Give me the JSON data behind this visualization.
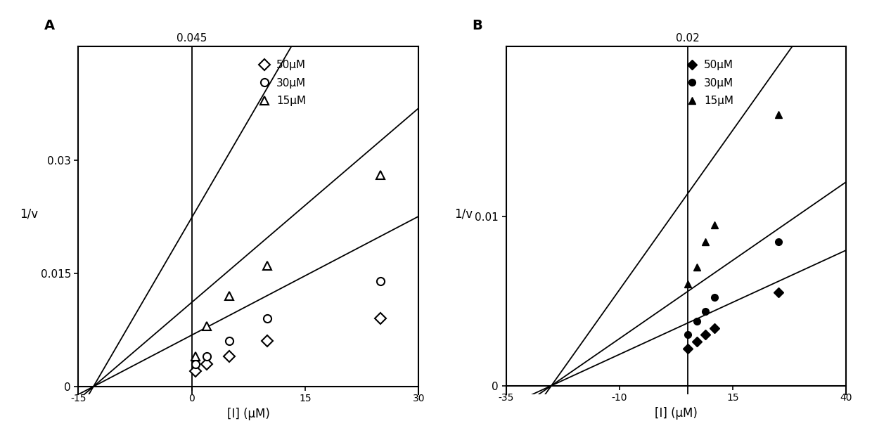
{
  "panel_A": {
    "title": "A",
    "xlabel": "[I] (μM)",
    "ylabel": "1/v",
    "xlim": [
      -15,
      30
    ],
    "ylim": [
      -0.001,
      0.045
    ],
    "yticks": [
      0,
      0.015,
      0.03
    ],
    "ytop_label": "0.045",
    "xticks": [
      -15,
      0,
      15,
      30
    ],
    "vline_x": 0,
    "series": [
      {
        "label": "50μM",
        "marker": "D",
        "filled": false,
        "data_x": [
          0.5,
          2,
          5,
          10,
          25
        ],
        "data_y": [
          0.002,
          0.003,
          0.004,
          0.006,
          0.009
        ],
        "line_x0": -13,
        "line_slope": 0.000524
      },
      {
        "label": "30μM",
        "marker": "o",
        "filled": false,
        "data_x": [
          0.5,
          2,
          5,
          10,
          25
        ],
        "data_y": [
          0.003,
          0.004,
          0.006,
          0.009,
          0.014
        ],
        "line_x0": -13,
        "line_slope": 0.000857
      },
      {
        "label": "15μM",
        "marker": "^",
        "filled": false,
        "data_x": [
          0.5,
          2,
          5,
          10,
          25
        ],
        "data_y": [
          0.004,
          0.008,
          0.012,
          0.016,
          0.028
        ],
        "line_x0": -13,
        "line_slope": 0.00172
      }
    ]
  },
  "panel_B": {
    "title": "B",
    "xlabel": "[I] (μM)",
    "ylabel": "1/v",
    "xlim": [
      -35,
      40
    ],
    "ylim": [
      -0.0005,
      0.02
    ],
    "yticks": [
      0,
      0.01
    ],
    "ytop_label": "0.02",
    "xticks": [
      -35,
      -10,
      15,
      40
    ],
    "vline_x": 5,
    "series": [
      {
        "label": "50μM",
        "marker": "D",
        "filled": true,
        "data_x": [
          5,
          7,
          9,
          11,
          25
        ],
        "data_y": [
          0.0022,
          0.0026,
          0.003,
          0.0034,
          0.0055
        ],
        "line_x0": -25,
        "line_slope": 0.000123
      },
      {
        "label": "30μM",
        "marker": "o",
        "filled": true,
        "data_x": [
          5,
          7,
          9,
          11,
          25
        ],
        "data_y": [
          0.003,
          0.0038,
          0.0044,
          0.0052,
          0.0085
        ],
        "line_x0": -25,
        "line_slope": 0.000185
      },
      {
        "label": "15μM",
        "marker": "^",
        "filled": true,
        "data_x": [
          5,
          7,
          9,
          11,
          25
        ],
        "data_y": [
          0.006,
          0.007,
          0.0085,
          0.0095,
          0.016
        ],
        "line_x0": -25,
        "line_slope": 0.000377
      }
    ]
  }
}
